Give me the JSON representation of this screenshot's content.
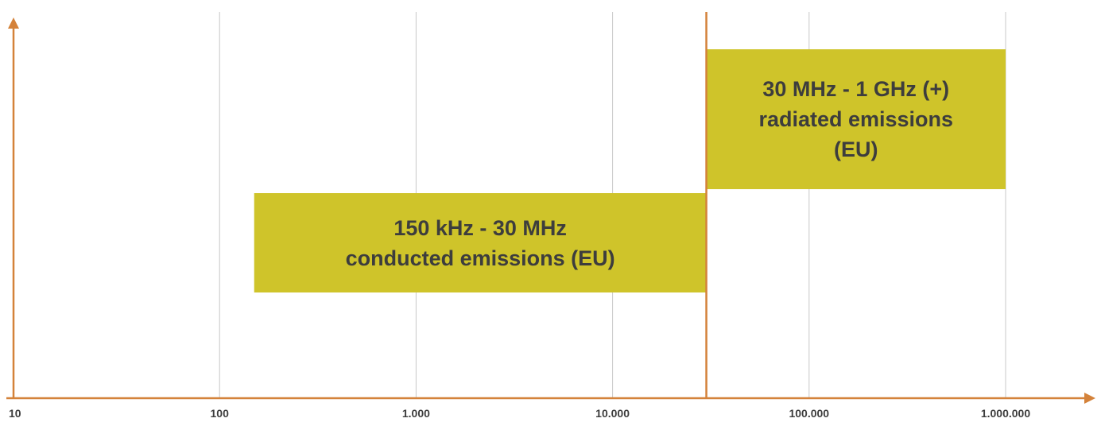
{
  "chart_data": {
    "type": "bar",
    "scale": "log10",
    "grid": true,
    "xlim": [
      10,
      1000000
    ],
    "ticks": [
      {
        "value": 10,
        "label": "10"
      },
      {
        "value": 100,
        "label": "100"
      },
      {
        "value": 1000,
        "label": "1.000"
      },
      {
        "value": 10000,
        "label": "10.000"
      },
      {
        "value": 100000,
        "label": "100.000"
      },
      {
        "value": 1000000,
        "label": "1.000.000"
      }
    ],
    "divider_value": 30000,
    "bands": [
      {
        "start": 150,
        "end": 30000,
        "line1": "150 kHz - 30 MHz",
        "line2": "conducted emissions (EU)",
        "line3": ""
      },
      {
        "start": 30000,
        "end": 1000000,
        "line1": "30 MHz - 1 GHz (+)",
        "line2": "radiated emissions",
        "line3": "(EU)"
      }
    ]
  },
  "colors": {
    "axis": "#d4823a",
    "grid": "#c8c8c8",
    "band": "#cfc42a",
    "text": "#3d3d3d"
  }
}
